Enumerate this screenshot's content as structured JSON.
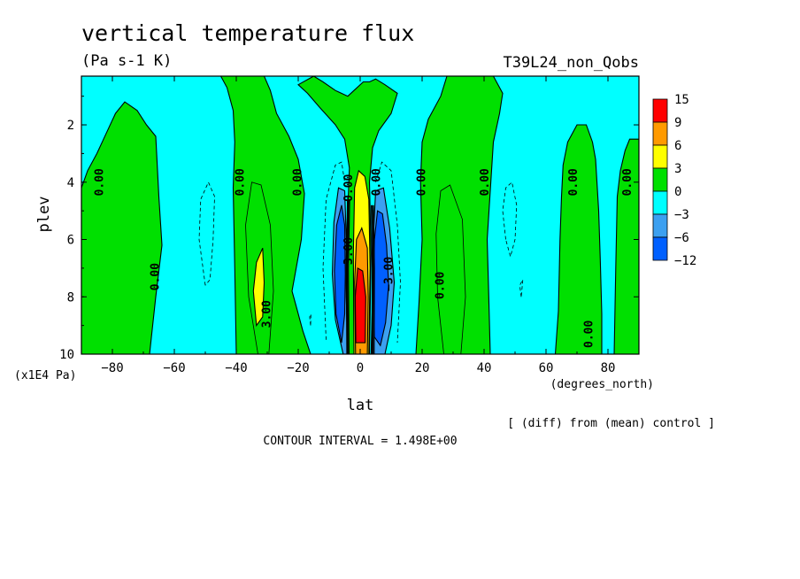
{
  "title": "vertical temperature flux",
  "units": "(Pa s-1 K)",
  "run_label": "T39L24_non_Qobs",
  "comparison_note": "[ (diff) from (mean) control ]",
  "contour_interval": "CONTOUR INTERVAL = 1.498E+00",
  "colors": {
    "frame": "#000000",
    "background": "#ffffff"
  },
  "chart_data": {
    "type": "heatmap",
    "title": "vertical temperature flux",
    "subtitle": "(Pa s-1 K)",
    "xlabel": "lat",
    "x_units": "(degrees_north)",
    "ylabel": "plev",
    "y_units": "(x1E4 Pa)",
    "xlim": [
      -90,
      90
    ],
    "ylim": [
      10,
      0.3
    ],
    "x_ticks": [
      -80,
      -60,
      -40,
      -20,
      0,
      20,
      40,
      60,
      80
    ],
    "x_tick_labels": [
      "−80",
      "−60",
      "−40",
      "−20",
      "0",
      "20",
      "40",
      "60",
      "80"
    ],
    "y_ticks": [
      2,
      4,
      6,
      8,
      10
    ],
    "y_tick_labels": [
      "2",
      "4",
      "6",
      "8",
      "10"
    ],
    "legend": {
      "placement": "right",
      "bins": [
        {
          "label": "15",
          "color": "#ff0000"
        },
        {
          "label": "9",
          "color": "#ff9a00"
        },
        {
          "label": "6",
          "color": "#ffff00"
        },
        {
          "label": "3",
          "color": "#00e000"
        },
        {
          "label": "0",
          "color": "#00ffff"
        },
        {
          "label": "−3",
          "color": "#3ca0f0"
        },
        {
          "label": "−6",
          "color": "#0060ff"
        },
        {
          "label": "−12",
          "color": ""
        }
      ]
    },
    "contour_labels": [
      {
        "text": "0.00",
        "x": -84,
        "y": 4.0
      },
      {
        "text": "0.00",
        "x": -38.5,
        "y": 4.0
      },
      {
        "text": "0.00",
        "x": -20,
        "y": 4.0
      },
      {
        "text": "0.00",
        "x": -3.5,
        "y": 4.2
      },
      {
        "text": "0.00",
        "x": 5.5,
        "y": 4.0
      },
      {
        "text": "0.00",
        "x": 20,
        "y": 4.0
      },
      {
        "text": "0.00",
        "x": 40.5,
        "y": 4.0
      },
      {
        "text": "0.00",
        "x": 69,
        "y": 4.0
      },
      {
        "text": "0.00",
        "x": 86.5,
        "y": 4.0
      },
      {
        "text": "0.00",
        "x": -66,
        "y": 7.3
      },
      {
        "text": "0.00",
        "x": 26,
        "y": 7.6
      },
      {
        "text": "0.00",
        "x": 74,
        "y": 9.3
      },
      {
        "text": "3.00",
        "x": -30,
        "y": 8.6
      },
      {
        "text": "−3.00",
        "x": 9.5,
        "y": 7.2
      },
      {
        "text": "3.00",
        "x": -3.5,
        "y": 6.4
      }
    ]
  }
}
